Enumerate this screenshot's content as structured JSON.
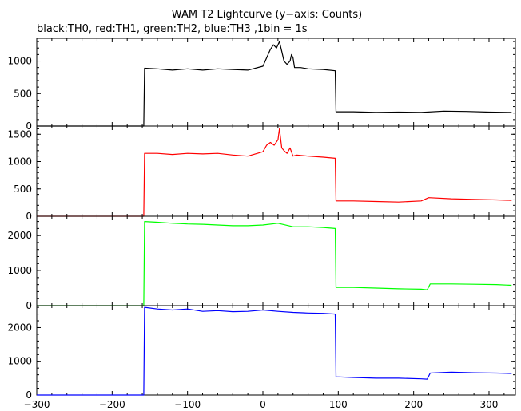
{
  "title": "WAM T2 Lightcurve (y−axis: Counts)",
  "subtitle": "black:TH0, red:TH1, green:TH2, blue:TH3 ,1bin = 1s",
  "chart_data": [
    {
      "type": "line",
      "name": "TH0",
      "color": "#000000",
      "xlim": [
        -300,
        335
      ],
      "ylim": [
        0,
        1350
      ],
      "yticks": [
        0,
        500,
        1000
      ],
      "ytick_labels": [
        "0",
        "500",
        "1000"
      ],
      "series": [
        {
          "x": [
            -300,
            -158,
            -157,
            -140,
            -120,
            -100,
            -80,
            -60,
            -40,
            -20,
            0,
            5,
            10,
            14,
            18,
            22,
            25,
            28,
            32,
            36,
            38,
            40,
            42,
            50,
            60,
            80,
            96,
            97,
            120,
            150,
            180,
            210,
            240,
            270,
            300,
            330
          ],
          "y": [
            0,
            0,
            890,
            880,
            860,
            880,
            860,
            880,
            870,
            860,
            920,
            1050,
            1180,
            1250,
            1200,
            1300,
            1150,
            1000,
            950,
            1000,
            1100,
            1050,
            900,
            900,
            880,
            870,
            850,
            220,
            220,
            210,
            215,
            210,
            230,
            225,
            215,
            210
          ]
        }
      ]
    },
    {
      "type": "line",
      "name": "TH1",
      "color": "#ff0000",
      "xlim": [
        -300,
        335
      ],
      "ylim": [
        0,
        1650
      ],
      "yticks": [
        0,
        500,
        1000,
        1500
      ],
      "ytick_labels": [
        "0",
        "500",
        "1000",
        "1500"
      ],
      "series": [
        {
          "x": [
            -300,
            -158,
            -157,
            -140,
            -120,
            -100,
            -80,
            -60,
            -40,
            -20,
            0,
            5,
            10,
            15,
            20,
            22,
            25,
            28,
            32,
            36,
            40,
            45,
            60,
            80,
            96,
            97,
            120,
            150,
            180,
            210,
            220,
            250,
            280,
            310,
            330
          ],
          "y": [
            0,
            0,
            1150,
            1150,
            1130,
            1150,
            1140,
            1150,
            1120,
            1100,
            1180,
            1300,
            1350,
            1300,
            1400,
            1600,
            1250,
            1200,
            1150,
            1250,
            1100,
            1120,
            1100,
            1080,
            1060,
            280,
            280,
            270,
            260,
            280,
            340,
            320,
            310,
            300,
            290
          ]
        }
      ]
    },
    {
      "type": "line",
      "name": "TH2",
      "color": "#00ff00",
      "xlim": [
        -300,
        335
      ],
      "ylim": [
        0,
        2550
      ],
      "yticks": [
        0,
        1000,
        2000
      ],
      "ytick_labels": [
        "0",
        "1000",
        "2000"
      ],
      "series": [
        {
          "x": [
            -300,
            -158,
            -157,
            -140,
            -120,
            -100,
            -80,
            -60,
            -40,
            -20,
            0,
            20,
            40,
            60,
            80,
            96,
            97,
            120,
            150,
            180,
            210,
            218,
            222,
            250,
            280,
            310,
            330
          ],
          "y": [
            0,
            0,
            2400,
            2380,
            2350,
            2330,
            2320,
            2300,
            2280,
            2280,
            2300,
            2350,
            2250,
            2250,
            2230,
            2200,
            520,
            520,
            500,
            480,
            470,
            450,
            620,
            620,
            610,
            600,
            580
          ]
        }
      ]
    },
    {
      "type": "line",
      "name": "TH3",
      "color": "#0000ff",
      "xlim": [
        -300,
        335
      ],
      "ylim": [
        0,
        2650
      ],
      "yticks": [
        0,
        1000,
        2000
      ],
      "ytick_labels": [
        "0",
        "1000",
        "2000"
      ],
      "xticks": [
        -300,
        -200,
        -100,
        0,
        100,
        200,
        300
      ],
      "xtick_labels": [
        "−300",
        "−200",
        "−100",
        "0",
        "100",
        "200",
        "300"
      ],
      "series": [
        {
          "x": [
            -300,
            -158,
            -157,
            -140,
            -120,
            -100,
            -80,
            -60,
            -40,
            -20,
            0,
            20,
            40,
            60,
            80,
            96,
            97,
            120,
            150,
            180,
            210,
            218,
            222,
            250,
            280,
            310,
            330
          ],
          "y": [
            0,
            0,
            2600,
            2550,
            2520,
            2550,
            2480,
            2500,
            2470,
            2480,
            2520,
            2480,
            2450,
            2430,
            2420,
            2400,
            540,
            520,
            500,
            500,
            480,
            470,
            650,
            680,
            660,
            650,
            640
          ]
        }
      ]
    }
  ]
}
